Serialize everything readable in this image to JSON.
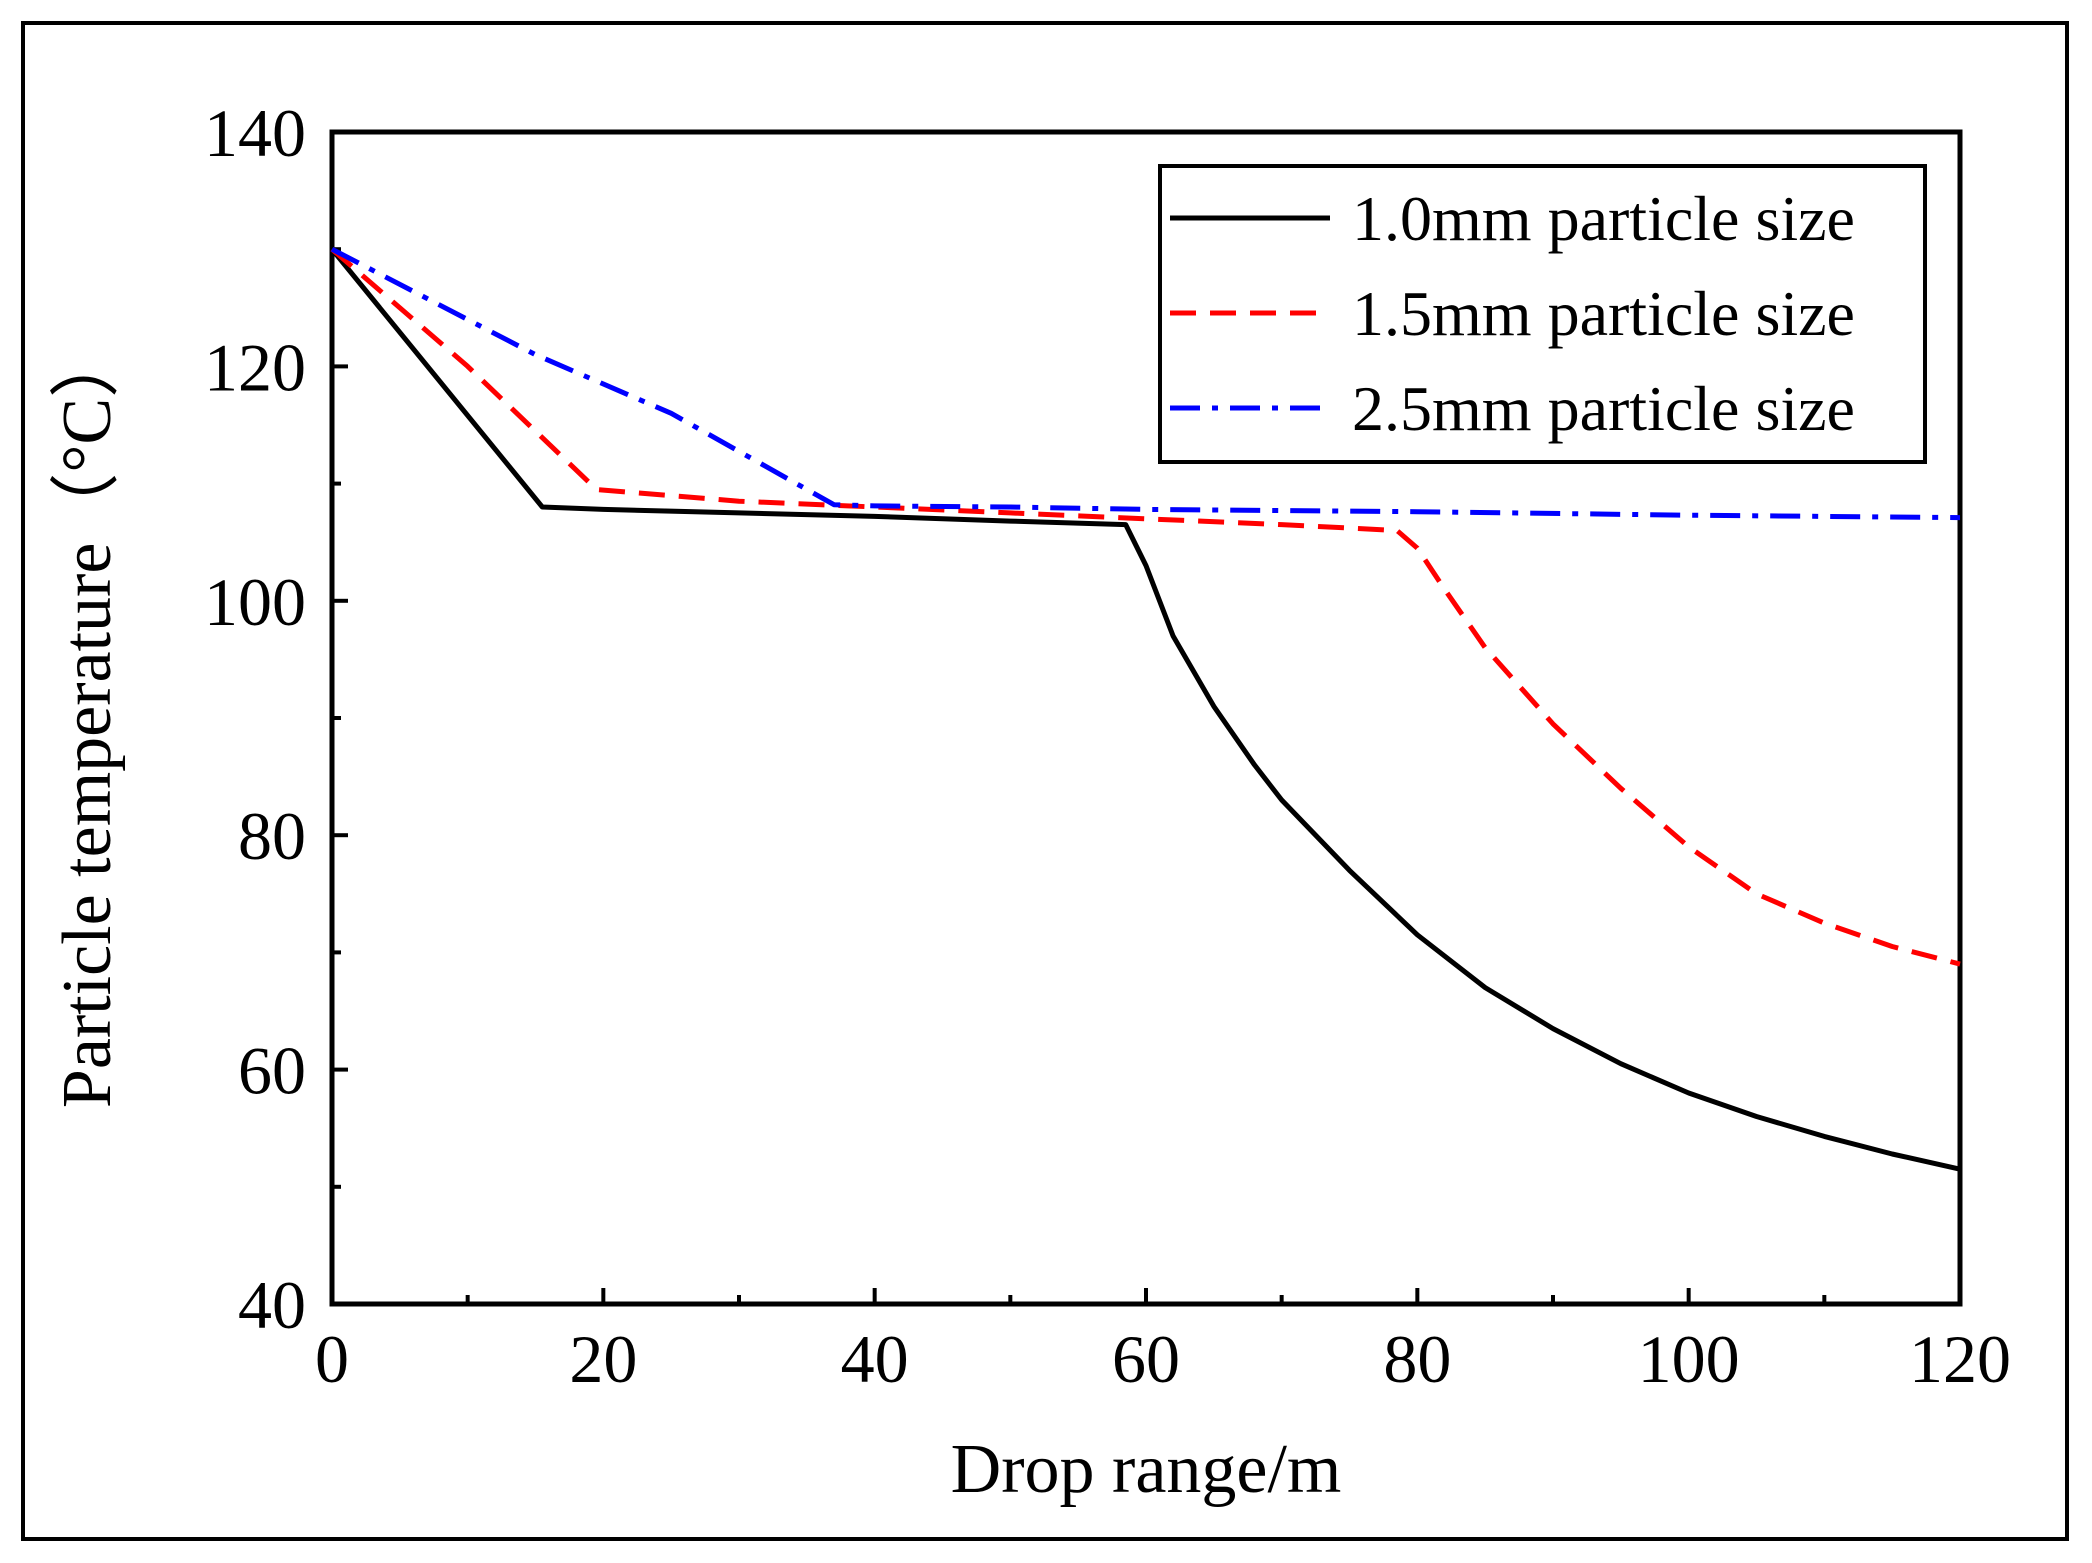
{
  "chart_data": {
    "type": "line",
    "xlabel": "Drop range/m",
    "ylabel": "Particle temperature（°C）",
    "xlim": [
      0,
      120
    ],
    "ylim": [
      40,
      140
    ],
    "xticks": [
      0,
      20,
      40,
      60,
      80,
      100,
      120
    ],
    "yticks": [
      40,
      60,
      80,
      100,
      120,
      140
    ],
    "x_minor_step": 10,
    "y_minor_step": 10,
    "grid": false,
    "legend_position": "top-right",
    "series": [
      {
        "name": "1.0mm particle size",
        "color": "#000000",
        "dash": "solid",
        "x": [
          0,
          15.5,
          20,
          30,
          40,
          50,
          58.5,
          60,
          62,
          65,
          68,
          70,
          75,
          80,
          85,
          90,
          95,
          100,
          105,
          110,
          115,
          120
        ],
        "y": [
          130,
          108,
          107.8,
          107.5,
          107.2,
          106.8,
          106.5,
          103,
          97,
          91,
          86,
          83,
          77,
          71.5,
          67,
          63.5,
          60.5,
          58,
          56,
          54.3,
          52.8,
          51.5
        ]
      },
      {
        "name": "1.5mm particle size",
        "color": "#ff0000",
        "dash": "dashed",
        "x": [
          0,
          10,
          19.5,
          30,
          40,
          50,
          60,
          70,
          78.5,
          80,
          82,
          85,
          90,
          95,
          100,
          105,
          110,
          115,
          120
        ],
        "y": [
          130,
          120,
          109.5,
          108.5,
          108,
          107.5,
          107,
          106.5,
          106,
          104.5,
          101,
          96,
          89.5,
          84,
          79,
          75,
          72.5,
          70.5,
          69
        ]
      },
      {
        "name": "2.5mm particle size",
        "color": "#0000ff",
        "dash": "dashdot",
        "x": [
          0,
          15,
          25,
          37,
          40,
          50,
          60,
          80,
          100,
          120
        ],
        "y": [
          130,
          121,
          116,
          108.2,
          108.1,
          108,
          107.8,
          107.6,
          107.3,
          107.1
        ]
      }
    ]
  }
}
